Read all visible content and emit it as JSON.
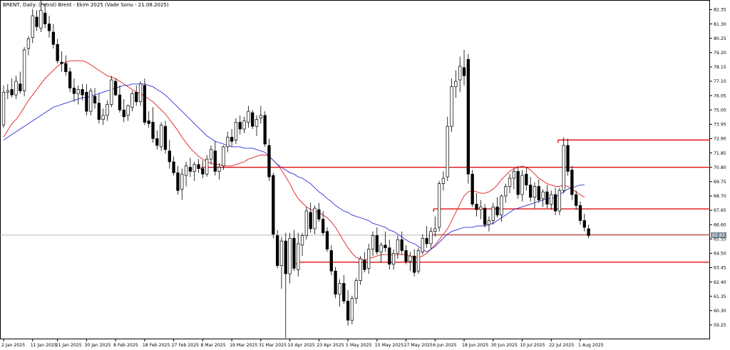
{
  "chart_data": {
    "type": "candlestick",
    "title": "BRENT, Daily: (Petrol) Brent - Ekim 2025 (Vade Sonu - 21.08.2025)",
    "current_price": "65.83",
    "ylim": [
      58.2,
      83.0
    ],
    "y_ticks": [
      "82.35",
      "81.30",
      "80.25",
      "79.20",
      "78.15",
      "77.10",
      "76.05",
      "75.00",
      "73.95",
      "72.90",
      "71.85",
      "70.80",
      "69.75",
      "68.70",
      "67.65",
      "66.60",
      "65.55",
      "64.50",
      "63.45",
      "62.40",
      "61.35",
      "60.30",
      "59.25"
    ],
    "x_ticks": [
      {
        "label": "2 Jan 2025",
        "i": 0
      },
      {
        "label": "11 Jan 2025",
        "i": 7
      },
      {
        "label": "21 Jan 2025",
        "i": 13
      },
      {
        "label": "30 Jan 2025",
        "i": 20
      },
      {
        "label": "8 Feb 2025",
        "i": 27
      },
      {
        "label": "18 Feb 2025",
        "i": 34
      },
      {
        "label": "27 Feb 2025",
        "i": 41
      },
      {
        "label": "8 Mar 2025",
        "i": 48
      },
      {
        "label": "19 Mar 2025",
        "i": 55
      },
      {
        "label": "31 Mar 2025",
        "i": 62
      },
      {
        "label": "10 Apr 2025",
        "i": 69
      },
      {
        "label": "23 Apr 2025",
        "i": 76
      },
      {
        "label": "5 May 2025",
        "i": 83
      },
      {
        "label": "15 May 2025",
        "i": 90
      },
      {
        "label": "27 May 2025",
        "i": 97
      },
      {
        "label": "6 Jun 2025",
        "i": 104
      },
      {
        "label": "18 Jun 2025",
        "i": 111
      },
      {
        "label": "30 Jun 2025",
        "i": 118
      },
      {
        "label": "10 Jul 2025",
        "i": 125
      },
      {
        "label": "22 Jul 2025",
        "i": 132
      },
      {
        "label": "1 Aug 2025",
        "i": 139
      }
    ],
    "support_resistance_levels": [
      {
        "y": 72.8,
        "from_i": 134,
        "to_i": 170
      },
      {
        "y": 70.8,
        "from_i": 48,
        "to_i": 170
      },
      {
        "y": 67.75,
        "from_i": 104,
        "to_i": 170
      },
      {
        "y": 65.85,
        "from_i": 103,
        "to_i": 170
      },
      {
        "y": 63.85,
        "from_i": 71,
        "to_i": 170
      }
    ],
    "candles": [
      [
        73.9,
        76.8,
        73.7,
        76.3
      ],
      [
        76.3,
        76.9,
        75.8,
        76.4
      ],
      [
        76.5,
        77.3,
        75.9,
        76.1
      ],
      [
        76.1,
        77.5,
        75.8,
        77.1
      ],
      [
        76.9,
        77.8,
        76.2,
        76.4
      ],
      [
        76.4,
        79.6,
        76.0,
        79.4
      ],
      [
        79.5,
        80.4,
        79.0,
        80.2
      ],
      [
        80.3,
        82.4,
        79.9,
        81.9
      ],
      [
        81.8,
        82.3,
        80.8,
        81.1
      ],
      [
        81.0,
        83.0,
        80.7,
        82.3
      ],
      [
        82.1,
        82.8,
        81.0,
        81.3
      ],
      [
        81.3,
        81.9,
        80.3,
        80.8
      ],
      [
        80.7,
        81.3,
        79.5,
        79.8
      ],
      [
        79.8,
        80.2,
        78.4,
        78.6
      ],
      [
        78.5,
        79.3,
        77.8,
        78.4
      ],
      [
        78.4,
        79.0,
        77.5,
        77.8
      ],
      [
        77.8,
        78.1,
        76.3,
        76.6
      ],
      [
        76.6,
        77.3,
        75.6,
        76.2
      ],
      [
        76.2,
        76.8,
        75.4,
        76.5
      ],
      [
        76.5,
        76.9,
        75.7,
        76.1
      ],
      [
        76.3,
        76.9,
        74.6,
        74.9
      ],
      [
        74.9,
        76.6,
        74.6,
        76.4
      ],
      [
        76.0,
        76.6,
        75.1,
        75.5
      ],
      [
        75.5,
        76.2,
        74.0,
        74.3
      ],
      [
        74.3,
        75.1,
        73.9,
        74.6
      ],
      [
        74.6,
        75.7,
        74.2,
        75.4
      ],
      [
        75.4,
        77.5,
        75.2,
        77.2
      ],
      [
        77.1,
        77.3,
        76.0,
        76.1
      ],
      [
        76.1,
        76.8,
        74.8,
        75.0
      ],
      [
        75.0,
        75.8,
        74.1,
        74.5
      ],
      [
        74.6,
        75.4,
        74.2,
        75.3
      ],
      [
        75.2,
        76.4,
        74.9,
        76.2
      ],
      [
        76.3,
        76.8,
        75.3,
        75.6
      ],
      [
        75.6,
        77.1,
        75.3,
        76.9
      ],
      [
        76.8,
        77.3,
        73.9,
        74.1
      ],
      [
        74.2,
        74.9,
        73.7,
        74.0
      ],
      [
        74.1,
        75.2,
        72.6,
        72.9
      ],
      [
        72.9,
        73.5,
        72.1,
        72.4
      ],
      [
        72.3,
        74.1,
        72.0,
        73.9
      ],
      [
        73.8,
        74.2,
        71.8,
        72.1
      ],
      [
        72.0,
        72.8,
        70.7,
        71.2
      ],
      [
        71.2,
        71.6,
        70.2,
        70.4
      ],
      [
        70.4,
        70.9,
        68.8,
        69.1
      ],
      [
        69.2,
        70.7,
        68.4,
        70.3
      ],
      [
        70.2,
        71.2,
        69.4,
        70.9
      ],
      [
        70.8,
        71.5,
        70.1,
        70.5
      ],
      [
        70.5,
        71.2,
        69.8,
        71.0
      ],
      [
        71.0,
        71.4,
        70.4,
        70.7
      ],
      [
        70.7,
        71.3,
        70.0,
        70.3
      ],
      [
        70.3,
        71.7,
        70.1,
        71.4
      ],
      [
        71.4,
        72.4,
        71.0,
        72.1
      ],
      [
        72.0,
        72.7,
        70.2,
        70.5
      ],
      [
        70.5,
        71.1,
        69.9,
        70.8
      ],
      [
        70.9,
        72.4,
        70.6,
        72.3
      ],
      [
        72.3,
        73.4,
        71.9,
        73.0
      ],
      [
        73.0,
        73.6,
        72.3,
        72.7
      ],
      [
        72.8,
        74.4,
        72.5,
        74.1
      ],
      [
        74.1,
        74.6,
        73.2,
        73.6
      ],
      [
        73.6,
        74.5,
        73.3,
        74.2
      ],
      [
        74.1,
        75.3,
        73.7,
        74.9
      ],
      [
        74.8,
        75.0,
        73.6,
        73.8
      ],
      [
        73.8,
        74.6,
        73.1,
        74.3
      ],
      [
        74.4,
        75.3,
        74.0,
        74.6
      ],
      [
        74.6,
        74.9,
        72.3,
        72.5
      ],
      [
        72.4,
        72.9,
        69.8,
        70.1
      ],
      [
        70.2,
        70.4,
        65.6,
        65.9
      ],
      [
        65.8,
        66.2,
        63.4,
        63.6
      ],
      [
        63.6,
        65.7,
        61.9,
        65.4
      ],
      [
        65.4,
        66.0,
        58.3,
        63.0
      ],
      [
        63.0,
        66.0,
        62.3,
        65.6
      ],
      [
        65.6,
        66.2,
        63.2,
        63.4
      ],
      [
        63.3,
        66.0,
        62.8,
        65.2
      ],
      [
        65.1,
        66.0,
        64.3,
        65.8
      ],
      [
        65.8,
        67.9,
        65.5,
        67.6
      ],
      [
        67.5,
        68.2,
        66.0,
        66.3
      ],
      [
        66.3,
        68.0,
        65.9,
        67.8
      ],
      [
        67.7,
        68.2,
        66.8,
        67.0
      ],
      [
        67.0,
        67.6,
        65.8,
        66.0
      ],
      [
        66.1,
        66.4,
        64.6,
        64.8
      ],
      [
        64.7,
        65.1,
        62.9,
        63.2
      ],
      [
        63.2,
        63.5,
        61.2,
        61.5
      ],
      [
        61.5,
        62.6,
        60.6,
        62.3
      ],
      [
        62.3,
        62.9,
        60.8,
        61.0
      ],
      [
        61.0,
        61.8,
        59.2,
        59.6
      ],
      [
        59.6,
        61.4,
        59.3,
        61.2
      ],
      [
        61.2,
        62.7,
        60.8,
        62.5
      ],
      [
        62.5,
        64.3,
        62.2,
        64.1
      ],
      [
        64.0,
        64.6,
        63.1,
        63.3
      ],
      [
        63.4,
        65.2,
        63.0,
        64.8
      ],
      [
        64.8,
        66.1,
        64.3,
        65.8
      ],
      [
        65.8,
        66.4,
        64.4,
        64.6
      ],
      [
        64.6,
        65.3,
        63.8,
        65.1
      ],
      [
        65.1,
        66.1,
        64.6,
        64.9
      ],
      [
        64.9,
        65.5,
        63.3,
        63.7
      ],
      [
        63.7,
        64.8,
        63.3,
        64.5
      ],
      [
        64.5,
        65.8,
        64.1,
        65.5
      ],
      [
        65.5,
        66.1,
        64.4,
        64.7
      ],
      [
        64.7,
        65.1,
        63.7,
        63.9
      ],
      [
        63.9,
        64.6,
        63.2,
        64.3
      ],
      [
        64.3,
        64.8,
        62.8,
        63.1
      ],
      [
        63.2,
        64.9,
        63.0,
        64.7
      ],
      [
        64.6,
        65.9,
        64.4,
        65.6
      ],
      [
        65.6,
        66.5,
        64.9,
        65.2
      ],
      [
        65.2,
        66.4,
        64.8,
        66.1
      ],
      [
        66.1,
        67.2,
        65.7,
        66.3
      ],
      [
        66.4,
        69.8,
        66.1,
        69.6
      ],
      [
        69.6,
        70.5,
        69.1,
        70.0
      ],
      [
        70.1,
        74.5,
        69.8,
        73.8
      ],
      [
        73.8,
        77.3,
        73.4,
        76.7
      ],
      [
        76.7,
        77.9,
        75.9,
        77.1
      ],
      [
        77.2,
        78.9,
        76.3,
        78.2
      ],
      [
        78.1,
        79.4,
        76.8,
        77.5
      ],
      [
        78.7,
        79.1,
        69.6,
        70.3
      ],
      [
        70.3,
        70.6,
        67.9,
        68.1
      ],
      [
        68.1,
        68.9,
        67.2,
        67.7
      ],
      [
        67.7,
        68.4,
        67.0,
        67.9
      ],
      [
        67.8,
        68.1,
        66.4,
        66.6
      ],
      [
        66.6,
        67.2,
        66.1,
        66.9
      ],
      [
        66.9,
        68.2,
        66.6,
        67.9
      ],
      [
        67.9,
        68.6,
        67.1,
        67.3
      ],
      [
        67.3,
        68.8,
        66.8,
        68.7
      ],
      [
        68.7,
        69.6,
        68.2,
        69.4
      ],
      [
        69.4,
        70.3,
        68.9,
        70.0
      ],
      [
        70.0,
        70.7,
        69.2,
        70.5
      ],
      [
        70.5,
        70.9,
        68.5,
        68.8
      ],
      [
        68.8,
        70.6,
        68.3,
        70.2
      ],
      [
        70.3,
        70.8,
        69.1,
        69.5
      ],
      [
        69.5,
        70.1,
        68.3,
        68.6
      ],
      [
        68.6,
        69.7,
        67.8,
        69.4
      ],
      [
        69.4,
        69.9,
        68.2,
        68.4
      ],
      [
        68.5,
        69.2,
        67.9,
        69.0
      ],
      [
        69.0,
        69.5,
        67.8,
        68.1
      ],
      [
        68.1,
        69.1,
        67.7,
        68.8
      ],
      [
        68.8,
        69.3,
        67.3,
        67.6
      ],
      [
        67.6,
        69.3,
        67.3,
        69.1
      ],
      [
        69.1,
        73.0,
        68.9,
        72.4
      ],
      [
        72.4,
        72.9,
        70.2,
        70.5
      ],
      [
        70.6,
        70.9,
        68.4,
        68.8
      ],
      [
        68.8,
        69.1,
        67.7,
        68.0
      ],
      [
        68.0,
        68.3,
        66.6,
        66.9
      ],
      [
        66.9,
        67.4,
        66.1,
        66.4
      ],
      [
        66.3,
        66.6,
        65.6,
        65.8
      ]
    ],
    "moving_averages": [
      {
        "color": "#e02020",
        "values": [
          73.0,
          73.5,
          74.0,
          74.3,
          74.7,
          75.2,
          75.7,
          76.1,
          76.5,
          76.9,
          77.3,
          77.6,
          77.9,
          78.2,
          78.4,
          78.5,
          78.6,
          78.6,
          78.6,
          78.6,
          78.5,
          78.3,
          78.1,
          77.9,
          77.7,
          77.5,
          77.4,
          77.3,
          77.1,
          76.9,
          76.7,
          76.5,
          76.3,
          76.2,
          76.0,
          75.8,
          75.6,
          75.3,
          75.0,
          74.7,
          74.3,
          73.9,
          73.5,
          73.0,
          72.6,
          72.2,
          71.9,
          71.6,
          71.4,
          71.2,
          71.1,
          71.0,
          71.0,
          70.9,
          70.9,
          70.9,
          71.0,
          71.1,
          71.2,
          71.4,
          71.5,
          71.6,
          71.7,
          71.7,
          71.6,
          71.3,
          71.0,
          70.6,
          70.1,
          69.6,
          69.0,
          68.5,
          68.2,
          67.9,
          67.7,
          67.6,
          67.5,
          67.3,
          67.1,
          66.8,
          66.4,
          65.9,
          65.4,
          64.9,
          64.5,
          64.2,
          64.1,
          64.0,
          64.1,
          64.2,
          64.3,
          64.4,
          64.4,
          64.4,
          64.4,
          64.4,
          64.4,
          64.4,
          64.3,
          64.2,
          64.2,
          64.3,
          64.5,
          64.8,
          65.1,
          65.5,
          65.9,
          66.3,
          66.9,
          67.5,
          68.1,
          68.7,
          69.0,
          69.1,
          69.0,
          68.9,
          68.9,
          69.0,
          69.2,
          69.5,
          69.9,
          70.2,
          70.5,
          70.7,
          70.8,
          70.9,
          70.8,
          70.6,
          70.3,
          70.0,
          69.8,
          69.6,
          69.5,
          69.4,
          69.4,
          69.5,
          69.4,
          69.2,
          69.0,
          68.8,
          68.6
        ]
      },
      {
        "color": "#3030dd",
        "values": [
          72.8,
          73.0,
          73.2,
          73.4,
          73.6,
          73.8,
          74.0,
          74.2,
          74.4,
          74.6,
          74.8,
          75.0,
          75.2,
          75.3,
          75.4,
          75.5,
          75.6,
          75.7,
          75.8,
          75.9,
          75.9,
          76.0,
          76.1,
          76.2,
          76.3,
          76.4,
          76.5,
          76.6,
          76.7,
          76.8,
          76.8,
          76.9,
          76.9,
          76.9,
          76.9,
          76.8,
          76.7,
          76.5,
          76.3,
          76.1,
          75.8,
          75.5,
          75.2,
          74.9,
          74.6,
          74.3,
          74.0,
          73.7,
          73.4,
          73.1,
          72.9,
          72.7,
          72.6,
          72.5,
          72.4,
          72.3,
          72.3,
          72.3,
          72.2,
          72.2,
          72.2,
          72.1,
          72.0,
          71.9,
          71.6,
          71.3,
          71.0,
          70.8,
          70.6,
          70.4,
          70.3,
          70.1,
          70.0,
          69.8,
          69.6,
          69.3,
          69.0,
          68.8,
          68.5,
          68.3,
          68.0,
          67.8,
          67.6,
          67.5,
          67.3,
          67.2,
          67.1,
          67.0,
          66.9,
          66.7,
          66.6,
          66.5,
          66.4,
          66.2,
          66.1,
          65.9,
          65.7,
          65.5,
          65.3,
          65.2,
          65.0,
          64.8,
          64.6,
          64.8,
          65.0,
          65.3,
          65.6,
          65.9,
          66.1,
          66.2,
          66.3,
          66.4,
          66.4,
          66.4,
          66.5,
          66.5,
          66.5,
          66.6,
          66.7,
          66.9,
          67.1,
          67.3,
          67.5,
          67.7,
          67.8,
          67.9,
          68.0,
          68.1,
          68.2,
          68.3,
          68.4,
          68.5,
          68.5,
          68.6,
          68.8,
          69.0,
          69.2,
          69.3,
          69.4,
          69.5,
          69.5
        ]
      }
    ]
  }
}
